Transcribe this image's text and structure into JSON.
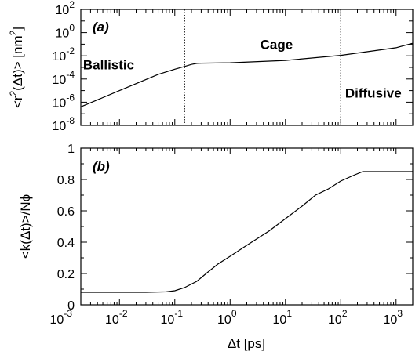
{
  "chart_data": [
    {
      "type": "line",
      "panel_label": "(a)",
      "xscale": "log",
      "yscale": "log",
      "xlim": [
        0.002,
        2000
      ],
      "ylim": [
        1e-08,
        100
      ],
      "ylabel_parts": {
        "pre": "<r",
        "sup": "2",
        "post": "(Δt)> [nm",
        "sup2": "2",
        "end": "]"
      },
      "y_ticks": [
        {
          "value": 1e-08,
          "base": "10",
          "exp": "-8"
        },
        {
          "value": 1e-06,
          "base": "10",
          "exp": "-6"
        },
        {
          "value": 0.0001,
          "base": "10",
          "exp": "-4"
        },
        {
          "value": 0.01,
          "base": "10",
          "exp": "-2"
        },
        {
          "value": 1,
          "base": "10",
          "exp": "0"
        },
        {
          "value": 100,
          "base": "10",
          "exp": "2"
        }
      ],
      "vlines": [
        0.15,
        100
      ],
      "annotations": [
        {
          "text": "Ballistic",
          "x": 0.0022,
          "y": 0.0007
        },
        {
          "text": "Cage",
          "x": 3.5,
          "y": 0.04
        },
        {
          "text": "Diffusive",
          "x": 120,
          "y": 2.5e-06
        }
      ],
      "series": [
        {
          "x": [
            0.002,
            0.005,
            0.01,
            0.02,
            0.05,
            0.1,
            0.15,
            0.2,
            0.25,
            0.3,
            1,
            10,
            100,
            1000,
            2000
          ],
          "y": [
            4e-07,
            2.5e-06,
            1e-05,
            4e-05,
            0.00025,
            0.0007,
            0.0012,
            0.0018,
            0.0022,
            0.0023,
            0.0025,
            0.004,
            0.011,
            0.05,
            0.12
          ]
        }
      ]
    },
    {
      "type": "line",
      "panel_label": "(b)",
      "xscale": "log",
      "xlim": [
        0.002,
        2000
      ],
      "ylim": [
        0,
        1
      ],
      "xlabel": "Δt [ps]",
      "ylabel": "<k(Δt)>/Nϕ",
      "x_ticks": [
        {
          "value": 0.001,
          "base": "10",
          "exp": "-3"
        },
        {
          "value": 0.01,
          "base": "10",
          "exp": "-2"
        },
        {
          "value": 0.1,
          "base": "10",
          "exp": "-1"
        },
        {
          "value": 1,
          "base": "10",
          "exp": "0"
        },
        {
          "value": 10,
          "base": "10",
          "exp": "1"
        },
        {
          "value": 100,
          "base": "10",
          "exp": "2"
        },
        {
          "value": 1000,
          "base": "10",
          "exp": "3"
        }
      ],
      "y_ticks": [
        {
          "value": 0,
          "label": "0"
        },
        {
          "value": 0.2,
          "label": "0.2"
        },
        {
          "value": 0.4,
          "label": "0.4"
        },
        {
          "value": 0.6,
          "label": "0.6"
        },
        {
          "value": 0.8,
          "label": "0.8"
        },
        {
          "value": 1,
          "label": "1"
        }
      ],
      "series": [
        {
          "x": [
            0.002,
            0.01,
            0.03,
            0.07,
            0.1,
            0.15,
            0.25,
            0.4,
            0.6,
            1,
            2,
            5,
            10,
            20,
            35,
            60,
            100,
            180,
            250,
            400,
            2000
          ],
          "y": [
            0.08,
            0.08,
            0.08,
            0.083,
            0.09,
            0.11,
            0.15,
            0.21,
            0.26,
            0.31,
            0.38,
            0.47,
            0.55,
            0.63,
            0.7,
            0.74,
            0.79,
            0.83,
            0.85,
            0.85,
            0.85
          ]
        }
      ]
    }
  ]
}
